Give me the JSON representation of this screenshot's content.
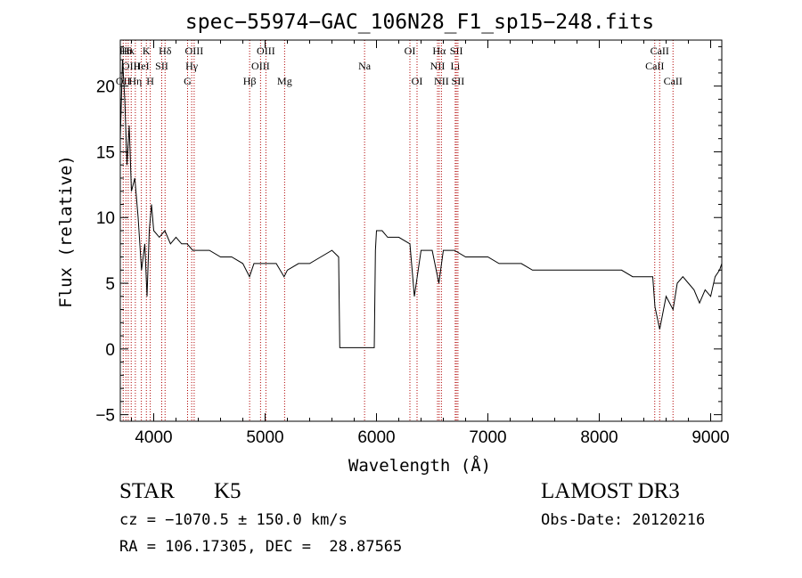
{
  "chart_data": {
    "type": "line",
    "title": "spec−55974−GAC_106N28_F1_sp15−248.fits",
    "xlabel": "Wavelength (Å)",
    "ylabel": "Flux (relative)",
    "xlim": [
      3700,
      9100
    ],
    "ylim": [
      -5.5,
      23.5
    ],
    "xticks": [
      4000,
      5000,
      6000,
      7000,
      8000,
      9000
    ],
    "yticks": [
      -5,
      0,
      5,
      10,
      15,
      20
    ],
    "xticklabels": [
      "4000",
      "5000",
      "6000",
      "7000",
      "8000",
      "9000"
    ],
    "yticklabels": [
      "−5",
      "0",
      "5",
      "10",
      "15",
      "20"
    ],
    "grid": false,
    "series": [
      {
        "color": "#000000",
        "x": [
          3700,
          3720,
          3740,
          3760,
          3780,
          3800,
          3830,
          3860,
          3890,
          3920,
          3940,
          3960,
          3980,
          4000,
          4050,
          4100,
          4150,
          4200,
          4250,
          4300,
          4350,
          4400,
          4500,
          4600,
          4700,
          4800,
          4860,
          4900,
          5000,
          5100,
          5170,
          5200,
          5300,
          5400,
          5500,
          5600,
          5660,
          5670,
          5800,
          5980,
          5990,
          6000,
          6050,
          6100,
          6200,
          6300,
          6340,
          6400,
          6500,
          6560,
          6600,
          6700,
          6800,
          6900,
          7000,
          7100,
          7200,
          7300,
          7400,
          7500,
          7600,
          7700,
          7800,
          7900,
          8000,
          8100,
          8200,
          8300,
          8400,
          8480,
          8500,
          8542,
          8600,
          8662,
          8700,
          8750,
          8800,
          8850,
          8900,
          8950,
          9000,
          9040,
          9080,
          9100
        ],
        "y": [
          16,
          22,
          19,
          14,
          17,
          12,
          13,
          10,
          6,
          8,
          4,
          9,
          11,
          9,
          8.5,
          9,
          8,
          8.5,
          8,
          8,
          7.5,
          7.5,
          7.5,
          7,
          7,
          6.5,
          5.5,
          6.5,
          6.5,
          6.5,
          5.5,
          6,
          6.5,
          6.5,
          7,
          7.5,
          7,
          0.1,
          0.1,
          0.1,
          7.5,
          9,
          9,
          8.5,
          8.5,
          8,
          4,
          7.5,
          7.5,
          5,
          7.5,
          7.5,
          7,
          7,
          7,
          6.5,
          6.5,
          6.5,
          6,
          6,
          6,
          6,
          6,
          6,
          6,
          6,
          6,
          5.5,
          5.5,
          5.5,
          3.2,
          1.5,
          4,
          3,
          5,
          5.5,
          5,
          4.5,
          3.5,
          4.5,
          4,
          5.5,
          6,
          6.5
        ]
      }
    ],
    "lines": [
      {
        "wl": 3726,
        "label": "OII",
        "row": 2
      },
      {
        "wl": 3750,
        "label": "Hθ",
        "row": 0
      },
      {
        "wl": 3771,
        "label": "Hκ",
        "row": 0
      },
      {
        "wl": 3798,
        "label": "OIII",
        "row": 1
      },
      {
        "wl": 3835,
        "label": "Hη",
        "row": 2
      },
      {
        "wl": 3889,
        "label": "HeI",
        "row": 1
      },
      {
        "wl": 3934,
        "label": "K",
        "row": 0
      },
      {
        "wl": 3969,
        "label": "H",
        "row": 2
      },
      {
        "wl": 4072,
        "label": "SII",
        "row": 1
      },
      {
        "wl": 4102,
        "label": "Hδ",
        "row": 0
      },
      {
        "wl": 4304,
        "label": "G",
        "row": 2
      },
      {
        "wl": 4341,
        "label": "Hγ",
        "row": 1
      },
      {
        "wl": 4363,
        "label": "OIII",
        "row": 0
      },
      {
        "wl": 4861,
        "label": "Hβ",
        "row": 2
      },
      {
        "wl": 4959,
        "label": "OIII",
        "row": 1
      },
      {
        "wl": 5007,
        "label": "OIII",
        "row": 0
      },
      {
        "wl": 5175,
        "label": "Mg",
        "row": 2
      },
      {
        "wl": 5893,
        "label": "Na",
        "row": 1
      },
      {
        "wl": 6300,
        "label": "OI",
        "row": 0
      },
      {
        "wl": 6364,
        "label": "OI",
        "row": 2
      },
      {
        "wl": 6548,
        "label": "NII",
        "row": 1
      },
      {
        "wl": 6563,
        "label": "Hα",
        "row": 0
      },
      {
        "wl": 6583,
        "label": "NII",
        "row": 2
      },
      {
        "wl": 6707,
        "label": "Li",
        "row": 1
      },
      {
        "wl": 6717,
        "label": "SII",
        "row": 0
      },
      {
        "wl": 6731,
        "label": "SII",
        "row": 2
      },
      {
        "wl": 8498,
        "label": "CaII",
        "row": 1
      },
      {
        "wl": 8542,
        "label": "CaII",
        "row": 0
      },
      {
        "wl": 8662,
        "label": "CaII",
        "row": 2
      }
    ]
  },
  "footer": {
    "object_class": "STAR",
    "subclass": "K5",
    "redshift": "cz = −1070.5 ± 150.0 km/s",
    "coords": "RA = 106.17305, DEC =  28.87565",
    "survey": "LAMOST DR3",
    "obs_date": "Obs-Date: 20120216"
  },
  "colors": {
    "spectrum": "#000000",
    "line_marker": "#b00000"
  }
}
